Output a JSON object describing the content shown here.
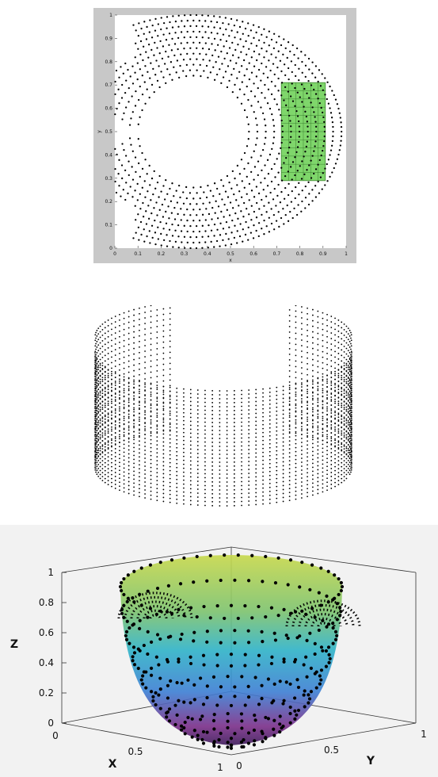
{
  "chart_data": [
    {
      "type": "scatter",
      "title": "",
      "xlabel": "x",
      "ylabel": "y",
      "xlim": [
        0,
        1
      ],
      "ylim": [
        0,
        1
      ],
      "xticks": [
        "0",
        "0.1",
        "0.2",
        "0.3",
        "0.4",
        "0.5",
        "0.6",
        "0.7",
        "0.8",
        "0.9",
        "1"
      ],
      "yticks": [
        "0",
        "0.1",
        "0.2",
        "0.3",
        "0.4",
        "0.5",
        "0.6",
        "0.7",
        "0.8",
        "0.9",
        "1"
      ],
      "grid": false,
      "point_color": "#000000",
      "background_frame_color": "#c8c8c8",
      "outer_boundary": {
        "center": [
          0.34,
          0.5
        ],
        "x_max": 0.98,
        "y_range": [
          0.0,
          1.0
        ]
      },
      "inner_hole": {
        "center": [
          0.34,
          0.5
        ],
        "radius": 0.2,
        "slot_opening_x": [
          0.08,
          0.2
        ],
        "slot_opening_y": [
          0.48,
          0.52
        ]
      },
      "highlighted_region": {
        "x": [
          0.72,
          0.91
        ],
        "y": [
          0.29,
          0.71
        ],
        "fill_color": "#7fd66b"
      }
    },
    {
      "type": "scatter",
      "title": "",
      "description_shape": "cylindrical shell with a slot cut out (3D point cloud)",
      "point_color": "#000000"
    },
    {
      "type": "surface",
      "title": "",
      "xlabel": "X",
      "ylabel": "Y",
      "zlabel": "Z",
      "xticks": [
        "0",
        "0.5",
        "1"
      ],
      "yticks": [
        "0",
        "0.5",
        "1"
      ],
      "zticks": [
        "0",
        "0.2",
        "0.4",
        "0.6",
        "0.8",
        "1"
      ],
      "xlim": [
        0,
        1
      ],
      "ylim": [
        0,
        1
      ],
      "zlim": [
        0,
        1
      ],
      "point_color": "#000000",
      "colormap": [
        "#3d1a5a",
        "#7b2f8a",
        "#3d7fd4",
        "#2fb3c8",
        "#7cc36e",
        "#c7d84a"
      ]
    }
  ]
}
